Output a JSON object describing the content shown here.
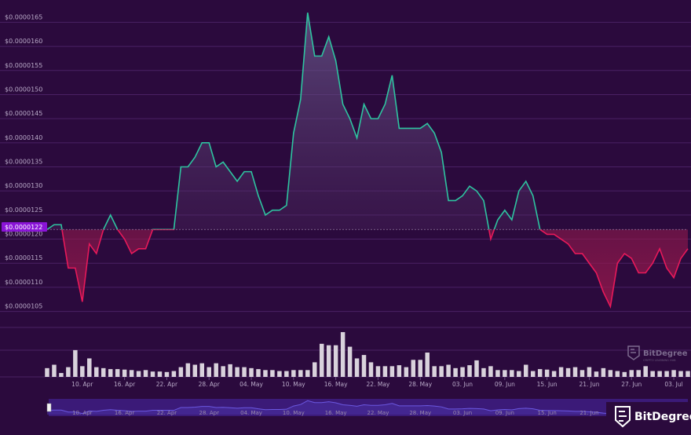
{
  "chart_data": {
    "type": "area",
    "ylim": [
      1.02e-05,
      1.68e-05
    ],
    "y_ticks": [
      "$0.0000165",
      "$0.0000160",
      "$0.0000155",
      "$0.0000150",
      "$0.0000145",
      "$0.0000140",
      "$0.0000135",
      "$0.0000130",
      "$0.0000125",
      "$0.0000120",
      "$0.0000115",
      "$0.0000110",
      "$0.0000105"
    ],
    "y_tick_values": [
      1.65e-05,
      1.6e-05,
      1.55e-05,
      1.5e-05,
      1.45e-05,
      1.4e-05,
      1.35e-05,
      1.3e-05,
      1.25e-05,
      1.2e-05,
      1.15e-05,
      1.1e-05,
      1.05e-05
    ],
    "x_range": [
      "2024-04-05",
      "2024-07-05"
    ],
    "x_ticks": [
      {
        "date": "2024-04-10",
        "label": "10. Apr"
      },
      {
        "date": "2024-04-16",
        "label": "16. Apr"
      },
      {
        "date": "2024-04-22",
        "label": "22. Apr"
      },
      {
        "date": "2024-04-28",
        "label": "28. Apr"
      },
      {
        "date": "2024-05-04",
        "label": "04. May"
      },
      {
        "date": "2024-05-10",
        "label": "10. May"
      },
      {
        "date": "2024-05-16",
        "label": "16. May"
      },
      {
        "date": "2024-05-22",
        "label": "22. May"
      },
      {
        "date": "2024-05-28",
        "label": "28. May"
      },
      {
        "date": "2024-06-03",
        "label": "03. Jun"
      },
      {
        "date": "2024-06-09",
        "label": "09. Jun"
      },
      {
        "date": "2024-06-15",
        "label": "15. Jun"
      },
      {
        "date": "2024-06-21",
        "label": "21. Jun"
      },
      {
        "date": "2024-06-27",
        "label": "27. Jun"
      },
      {
        "date": "2024-07-03",
        "label": "03. Jul"
      }
    ],
    "reference_price": 1.22e-05,
    "reference_label": "$0.0000122",
    "up_color": "#2ec4a0",
    "down_color": "#e8195a",
    "volume_color": "#d9d2dc",
    "series": [
      {
        "dates": [
          "2024-04-05",
          "2024-04-06",
          "2024-04-07",
          "2024-04-08",
          "2024-04-09",
          "2024-04-10",
          "2024-04-11",
          "2024-04-12",
          "2024-04-13",
          "2024-04-14",
          "2024-04-15",
          "2024-04-16",
          "2024-04-17",
          "2024-04-18",
          "2024-04-19",
          "2024-04-20",
          "2024-04-21",
          "2024-04-22",
          "2024-04-23",
          "2024-04-24",
          "2024-04-25",
          "2024-04-26",
          "2024-04-27",
          "2024-04-28",
          "2024-04-29",
          "2024-04-30",
          "2024-05-01",
          "2024-05-02",
          "2024-05-03",
          "2024-05-04",
          "2024-05-05",
          "2024-05-06",
          "2024-05-07",
          "2024-05-08",
          "2024-05-09",
          "2024-05-10",
          "2024-05-11",
          "2024-05-12",
          "2024-05-13",
          "2024-05-14",
          "2024-05-15",
          "2024-05-16",
          "2024-05-17",
          "2024-05-18",
          "2024-05-19",
          "2024-05-20",
          "2024-05-21",
          "2024-05-22",
          "2024-05-23",
          "2024-05-24",
          "2024-05-25",
          "2024-05-26",
          "2024-05-27",
          "2024-05-28",
          "2024-05-29",
          "2024-05-30",
          "2024-05-31",
          "2024-06-01",
          "2024-06-02",
          "2024-06-03",
          "2024-06-04",
          "2024-06-05",
          "2024-06-06",
          "2024-06-07",
          "2024-06-08",
          "2024-06-09",
          "2024-06-10",
          "2024-06-11",
          "2024-06-12",
          "2024-06-13",
          "2024-06-14",
          "2024-06-15",
          "2024-06-16",
          "2024-06-17",
          "2024-06-18",
          "2024-06-19",
          "2024-06-20",
          "2024-06-21",
          "2024-06-22",
          "2024-06-23",
          "2024-06-24",
          "2024-06-25",
          "2024-06-26",
          "2024-06-27",
          "2024-06-28",
          "2024-06-29",
          "2024-06-30",
          "2024-07-01",
          "2024-07-02",
          "2024-07-03",
          "2024-07-04",
          "2024-07-05"
        ],
        "values": [
          1.22e-05,
          1.23e-05,
          1.23e-05,
          1.14e-05,
          1.14e-05,
          1.07e-05,
          1.19e-05,
          1.17e-05,
          1.22e-05,
          1.25e-05,
          1.22e-05,
          1.2e-05,
          1.17e-05,
          1.18e-05,
          1.18e-05,
          1.22e-05,
          1.22e-05,
          1.22e-05,
          1.22e-05,
          1.35e-05,
          1.35e-05,
          1.37e-05,
          1.4e-05,
          1.4e-05,
          1.35e-05,
          1.36e-05,
          1.34e-05,
          1.32e-05,
          1.34e-05,
          1.34e-05,
          1.29e-05,
          1.25e-05,
          1.26e-05,
          1.26e-05,
          1.27e-05,
          1.42e-05,
          1.49e-05,
          1.67e-05,
          1.58e-05,
          1.58e-05,
          1.62e-05,
          1.57e-05,
          1.48e-05,
          1.45e-05,
          1.41e-05,
          1.48e-05,
          1.45e-05,
          1.45e-05,
          1.48e-05,
          1.54e-05,
          1.43e-05,
          1.43e-05,
          1.43e-05,
          1.43e-05,
          1.44e-05,
          1.42e-05,
          1.38e-05,
          1.28e-05,
          1.28e-05,
          1.29e-05,
          1.31e-05,
          1.3e-05,
          1.28e-05,
          1.2e-05,
          1.24e-05,
          1.26e-05,
          1.24e-05,
          1.3e-05,
          1.32e-05,
          1.29e-05,
          1.22e-05,
          1.21e-05,
          1.21e-05,
          1.2e-05,
          1.19e-05,
          1.17e-05,
          1.17e-05,
          1.15e-05,
          1.13e-05,
          1.09e-05,
          1.06e-05,
          1.15e-05,
          1.17e-05,
          1.16e-05,
          1.13e-05,
          1.13e-05,
          1.15e-05,
          1.18e-05,
          1.14e-05,
          1.12e-05,
          1.16e-05,
          1.18e-05
        ]
      }
    ],
    "volume_relative": [
      0.18,
      0.25,
      0.08,
      0.2,
      0.55,
      0.22,
      0.38,
      0.2,
      0.18,
      0.16,
      0.16,
      0.15,
      0.14,
      0.12,
      0.14,
      0.11,
      0.11,
      0.1,
      0.12,
      0.2,
      0.28,
      0.25,
      0.28,
      0.2,
      0.28,
      0.22,
      0.26,
      0.2,
      0.2,
      0.18,
      0.16,
      0.14,
      0.14,
      0.12,
      0.12,
      0.14,
      0.14,
      0.14,
      0.3,
      0.68,
      0.65,
      0.65,
      0.92,
      0.62,
      0.38,
      0.45,
      0.3,
      0.22,
      0.22,
      0.22,
      0.24,
      0.2,
      0.35,
      0.35,
      0.5,
      0.22,
      0.22,
      0.25,
      0.18,
      0.2,
      0.24,
      0.34,
      0.18,
      0.22,
      0.14,
      0.14,
      0.14,
      0.12,
      0.25,
      0.12,
      0.16,
      0.15,
      0.12,
      0.2,
      0.18,
      0.2,
      0.14,
      0.2,
      0.11,
      0.18,
      0.14,
      0.12,
      0.1,
      0.14,
      0.14,
      0.22,
      0.12,
      0.12,
      0.12,
      0.14,
      0.12,
      0.12
    ]
  },
  "watermark": {
    "name": "BitDegree",
    "tagline": "CRYPTO LEARNING HUB"
  },
  "logo": {
    "name": "BitDegree"
  },
  "icons": {
    "watermark": "bitdegree-shield-icon",
    "logo": "bitdegree-shield-icon"
  }
}
